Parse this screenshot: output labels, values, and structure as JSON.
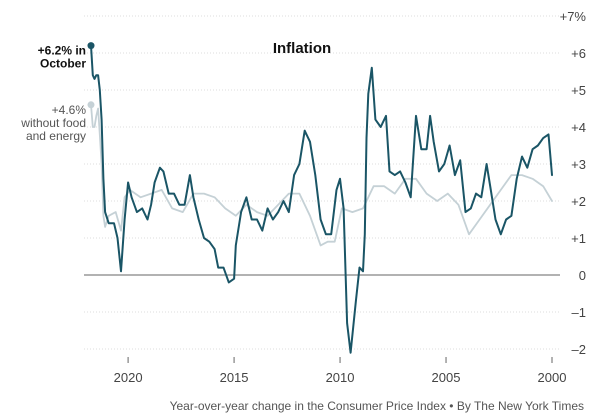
{
  "chart_data": {
    "type": "line",
    "title": "Inflation",
    "x_reversed": true,
    "xlim": [
      "2000-01",
      "2021-10"
    ],
    "ylim": [
      -2,
      7
    ],
    "x_ticks": [
      {
        "label": "2000",
        "year": 2000
      },
      {
        "label": "2005",
        "year": 2005
      },
      {
        "label": "2010",
        "year": 2010
      },
      {
        "label": "2015",
        "year": 2015
      },
      {
        "label": "2020",
        "year": 2020
      }
    ],
    "y_ticks": [
      {
        "label": "–2",
        "value": -2
      },
      {
        "label": "–1",
        "value": -1
      },
      {
        "label": "0",
        "value": 0
      },
      {
        "label": "+1",
        "value": 1
      },
      {
        "label": "+2",
        "value": 2
      },
      {
        "label": "+3",
        "value": 3
      },
      {
        "label": "+4",
        "value": 4
      },
      {
        "label": "+5",
        "value": 5
      },
      {
        "label": "+6",
        "value": 6
      },
      {
        "label": "+7%",
        "value": 7
      }
    ],
    "grid": true,
    "series": [
      {
        "name": "",
        "color": "#1a5566",
        "points": [
          [
            "2000-01",
            2.7
          ],
          [
            "2000-03",
            3.8
          ],
          [
            "2000-06",
            3.7
          ],
          [
            "2000-09",
            3.5
          ],
          [
            "2000-12",
            3.4
          ],
          [
            "2001-03",
            2.9
          ],
          [
            "2001-06",
            3.2
          ],
          [
            "2001-09",
            2.6
          ],
          [
            "2001-12",
            1.6
          ],
          [
            "2002-03",
            1.5
          ],
          [
            "2002-06",
            1.1
          ],
          [
            "2002-09",
            1.5
          ],
          [
            "2002-12",
            2.4
          ],
          [
            "2003-02",
            3.0
          ],
          [
            "2003-05",
            2.1
          ],
          [
            "2003-08",
            2.2
          ],
          [
            "2003-11",
            1.8
          ],
          [
            "2004-02",
            1.7
          ],
          [
            "2004-05",
            3.1
          ],
          [
            "2004-08",
            2.7
          ],
          [
            "2004-11",
            3.5
          ],
          [
            "2005-02",
            3.0
          ],
          [
            "2005-05",
            2.8
          ],
          [
            "2005-08",
            3.6
          ],
          [
            "2005-10",
            4.3
          ],
          [
            "2005-12",
            3.4
          ],
          [
            "2006-03",
            3.4
          ],
          [
            "2006-06",
            4.3
          ],
          [
            "2006-09",
            2.1
          ],
          [
            "2006-12",
            2.5
          ],
          [
            "2007-03",
            2.8
          ],
          [
            "2007-06",
            2.7
          ],
          [
            "2007-09",
            2.8
          ],
          [
            "2007-11",
            4.3
          ],
          [
            "2008-02",
            4.0
          ],
          [
            "2008-05",
            4.2
          ],
          [
            "2008-07",
            5.6
          ],
          [
            "2008-09",
            4.9
          ],
          [
            "2008-10",
            3.7
          ],
          [
            "2008-11",
            1.1
          ],
          [
            "2008-12",
            0.1
          ],
          [
            "2009-02",
            0.2
          ],
          [
            "2009-04",
            -0.7
          ],
          [
            "2009-07",
            -2.1
          ],
          [
            "2009-09",
            -1.3
          ],
          [
            "2009-11",
            1.8
          ],
          [
            "2010-01",
            2.6
          ],
          [
            "2010-03",
            2.3
          ],
          [
            "2010-06",
            1.1
          ],
          [
            "2010-09",
            1.1
          ],
          [
            "2010-12",
            1.5
          ],
          [
            "2011-03",
            2.7
          ],
          [
            "2011-06",
            3.6
          ],
          [
            "2011-09",
            3.9
          ],
          [
            "2011-12",
            3.0
          ],
          [
            "2012-03",
            2.7
          ],
          [
            "2012-06",
            1.7
          ],
          [
            "2012-09",
            2.0
          ],
          [
            "2012-12",
            1.7
          ],
          [
            "2013-03",
            1.5
          ],
          [
            "2013-06",
            1.8
          ],
          [
            "2013-09",
            1.2
          ],
          [
            "2013-12",
            1.5
          ],
          [
            "2014-03",
            1.5
          ],
          [
            "2014-06",
            2.1
          ],
          [
            "2014-09",
            1.7
          ],
          [
            "2014-12",
            0.8
          ],
          [
            "2015-01",
            -0.1
          ],
          [
            "2015-04",
            -0.2
          ],
          [
            "2015-07",
            0.2
          ],
          [
            "2015-10",
            0.2
          ],
          [
            "2015-12",
            0.7
          ],
          [
            "2016-03",
            0.9
          ],
          [
            "2016-06",
            1.0
          ],
          [
            "2016-09",
            1.5
          ],
          [
            "2016-12",
            2.1
          ],
          [
            "2017-02",
            2.7
          ],
          [
            "2017-05",
            1.9
          ],
          [
            "2017-08",
            1.9
          ],
          [
            "2017-11",
            2.2
          ],
          [
            "2018-02",
            2.2
          ],
          [
            "2018-05",
            2.8
          ],
          [
            "2018-07",
            2.9
          ],
          [
            "2018-10",
            2.5
          ],
          [
            "2018-12",
            1.9
          ],
          [
            "2019-02",
            1.5
          ],
          [
            "2019-05",
            1.8
          ],
          [
            "2019-08",
            1.7
          ],
          [
            "2019-11",
            2.1
          ],
          [
            "2020-01",
            2.5
          ],
          [
            "2020-03",
            1.5
          ],
          [
            "2020-05",
            0.1
          ],
          [
            "2020-07",
            1.0
          ],
          [
            "2020-09",
            1.4
          ],
          [
            "2020-12",
            1.4
          ],
          [
            "2021-02",
            1.7
          ],
          [
            "2021-03",
            2.6
          ],
          [
            "2021-04",
            4.2
          ],
          [
            "2021-05",
            5.0
          ],
          [
            "2021-06",
            5.4
          ],
          [
            "2021-07",
            5.4
          ],
          [
            "2021-08",
            5.3
          ],
          [
            "2021-09",
            5.4
          ],
          [
            "2021-10",
            6.2
          ]
        ]
      },
      {
        "name": "",
        "color": "#c5d1d6",
        "points": [
          [
            "2000-01",
            2.0
          ],
          [
            "2000-06",
            2.4
          ],
          [
            "2000-12",
            2.6
          ],
          [
            "2001-06",
            2.7
          ],
          [
            "2001-12",
            2.7
          ],
          [
            "2002-06",
            2.3
          ],
          [
            "2002-12",
            1.9
          ],
          [
            "2003-06",
            1.5
          ],
          [
            "2003-12",
            1.1
          ],
          [
            "2004-06",
            1.9
          ],
          [
            "2004-12",
            2.2
          ],
          [
            "2005-06",
            2.0
          ],
          [
            "2005-12",
            2.2
          ],
          [
            "2006-06",
            2.6
          ],
          [
            "2006-12",
            2.6
          ],
          [
            "2007-06",
            2.2
          ],
          [
            "2007-12",
            2.4
          ],
          [
            "2008-06",
            2.4
          ],
          [
            "2008-12",
            1.8
          ],
          [
            "2009-06",
            1.7
          ],
          [
            "2009-12",
            1.8
          ],
          [
            "2010-04",
            0.9
          ],
          [
            "2010-08",
            0.9
          ],
          [
            "2010-12",
            0.8
          ],
          [
            "2011-06",
            1.6
          ],
          [
            "2011-12",
            2.2
          ],
          [
            "2012-06",
            2.2
          ],
          [
            "2012-12",
            1.9
          ],
          [
            "2013-06",
            1.6
          ],
          [
            "2013-12",
            1.7
          ],
          [
            "2014-06",
            1.9
          ],
          [
            "2014-12",
            1.6
          ],
          [
            "2015-06",
            1.8
          ],
          [
            "2015-12",
            2.1
          ],
          [
            "2016-06",
            2.2
          ],
          [
            "2016-12",
            2.2
          ],
          [
            "2017-06",
            1.7
          ],
          [
            "2017-12",
            1.8
          ],
          [
            "2018-06",
            2.3
          ],
          [
            "2018-12",
            2.2
          ],
          [
            "2019-06",
            2.1
          ],
          [
            "2019-12",
            2.3
          ],
          [
            "2020-03",
            2.1
          ],
          [
            "2020-05",
            1.2
          ],
          [
            "2020-08",
            1.7
          ],
          [
            "2020-12",
            1.6
          ],
          [
            "2021-02",
            1.3
          ],
          [
            "2021-03",
            1.6
          ],
          [
            "2021-04",
            3.0
          ],
          [
            "2021-05",
            3.8
          ],
          [
            "2021-06",
            4.5
          ],
          [
            "2021-07",
            4.3
          ],
          [
            "2021-08",
            4.0
          ],
          [
            "2021-09",
            4.0
          ],
          [
            "2021-10",
            4.6
          ]
        ]
      }
    ],
    "annotations": [
      {
        "lines": [
          "+6.2% in",
          "October"
        ],
        "series": 0,
        "style": "strong"
      },
      {
        "lines": [
          "+4.6%",
          "without food",
          "and energy"
        ],
        "series": 1,
        "style": "light"
      }
    ],
    "source": "Year-over-year change in the Consumer Price Index  •  By The New York Times"
  }
}
